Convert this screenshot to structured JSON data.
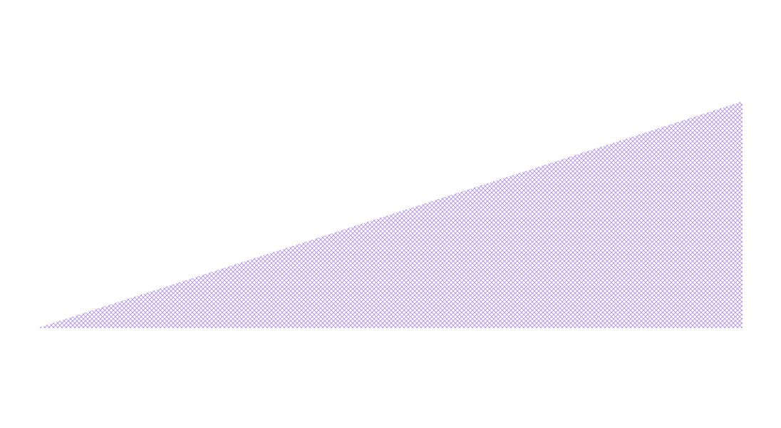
{
  "shape": {
    "kind": "right-triangle",
    "fill_style": "diagonal-crosshatch",
    "color": "#b79cf0",
    "background": "#ffffff"
  }
}
